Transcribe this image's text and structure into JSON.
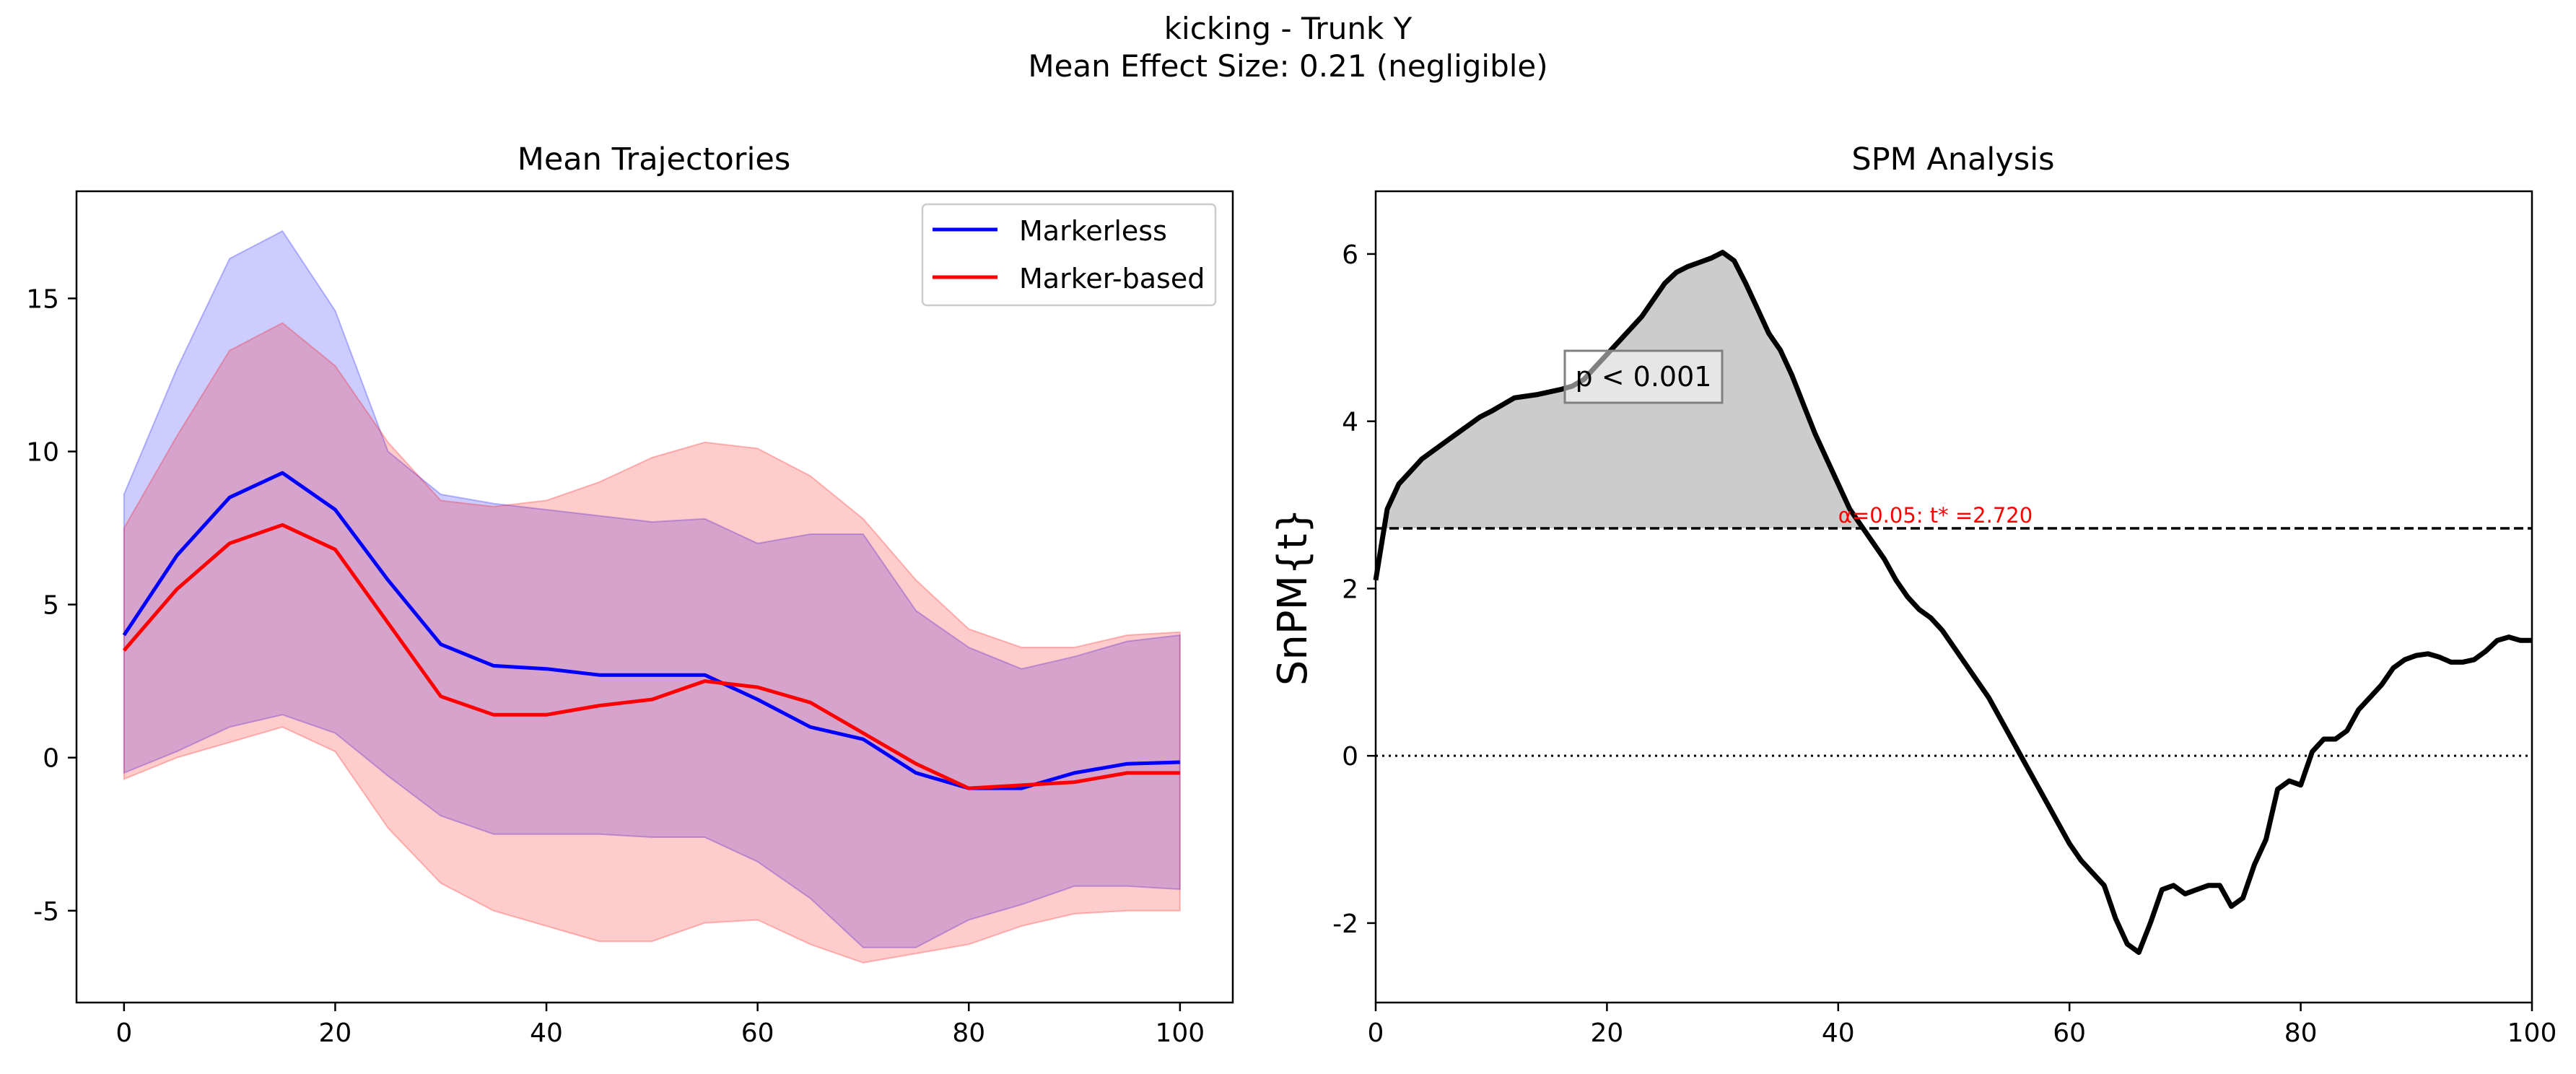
{
  "figure": {
    "title_line1": "kicking - Trunk Y",
    "title_line2": "Mean Effect Size: 0.21 (negligible)"
  },
  "chart_data": [
    {
      "type": "line",
      "title": "Mean Trajectories",
      "xlabel": "",
      "ylabel": "",
      "xlim": [
        -4.5,
        105
      ],
      "ylim": [
        -8,
        18.5
      ],
      "xticks": [
        0,
        20,
        40,
        60,
        80,
        100
      ],
      "yticks": [
        -5,
        0,
        5,
        10,
        15
      ],
      "grid": false,
      "legend_position": "top-right",
      "x": [
        0,
        5,
        10,
        15,
        20,
        25,
        30,
        35,
        40,
        45,
        50,
        55,
        60,
        65,
        70,
        75,
        80,
        85,
        90,
        95,
        100
      ],
      "series": [
        {
          "name": "Markerless",
          "color": "#0000ff",
          "band_color": "#0000ff",
          "band_opacity": 0.2,
          "values": [
            4.0,
            6.6,
            8.5,
            9.3,
            8.1,
            5.8,
            3.7,
            3.0,
            2.9,
            2.7,
            2.7,
            2.7,
            1.9,
            1.0,
            0.6,
            -0.5,
            -1.0,
            -1.0,
            -0.5,
            -0.2,
            -0.15
          ],
          "upper": [
            8.6,
            12.7,
            16.3,
            17.2,
            14.6,
            10.0,
            8.6,
            8.3,
            8.1,
            7.9,
            7.7,
            7.8,
            7.0,
            7.3,
            7.3,
            4.8,
            3.6,
            2.9,
            3.3,
            3.8,
            4.0
          ],
          "lower": [
            -0.5,
            0.2,
            1.0,
            1.4,
            0.8,
            -0.6,
            -1.9,
            -2.5,
            -2.5,
            -2.5,
            -2.6,
            -2.6,
            -3.4,
            -4.6,
            -6.2,
            -6.2,
            -5.3,
            -4.8,
            -4.2,
            -4.2,
            -4.3
          ]
        },
        {
          "name": "Marker-based",
          "color": "#ff0000",
          "band_color": "#ff0000",
          "band_opacity": 0.2,
          "values": [
            3.5,
            5.5,
            7.0,
            7.6,
            6.8,
            4.4,
            2.0,
            1.4,
            1.4,
            1.7,
            1.9,
            2.5,
            2.3,
            1.8,
            0.8,
            -0.2,
            -1.0,
            -0.9,
            -0.8,
            -0.5,
            -0.5
          ],
          "upper": [
            7.5,
            10.5,
            13.3,
            14.2,
            12.8,
            10.3,
            8.4,
            8.2,
            8.4,
            9.0,
            9.8,
            10.3,
            10.1,
            9.2,
            7.8,
            5.8,
            4.2,
            3.6,
            3.6,
            4.0,
            4.1
          ],
          "lower": [
            -0.7,
            0.0,
            0.5,
            1.0,
            0.2,
            -2.3,
            -4.1,
            -5.0,
            -5.5,
            -6.0,
            -6.0,
            -5.4,
            -5.3,
            -6.1,
            -6.7,
            -6.4,
            -6.1,
            -5.5,
            -5.1,
            -5.0,
            -5.0
          ]
        }
      ]
    },
    {
      "type": "line",
      "title": "SPM Analysis",
      "xlabel": "",
      "ylabel": "SnPM{t}",
      "xlim": [
        0,
        100
      ],
      "ylim": [
        -2.95,
        6.75
      ],
      "xticks": [
        0,
        20,
        40,
        60,
        80,
        100
      ],
      "yticks": [
        -2,
        0,
        2,
        4,
        6
      ],
      "grid": false,
      "threshold": 2.72,
      "threshold_color": "#ff0000",
      "threshold_label": "α=0.05:  t* =2.720",
      "cluster_label": "p < 0.001",
      "cluster_fill": "#cccccc",
      "x": [
        0,
        1,
        2,
        3,
        4,
        5,
        6,
        7,
        8,
        9,
        10,
        11,
        12,
        13,
        14,
        15,
        16,
        17,
        18,
        19,
        20,
        21,
        22,
        23,
        24,
        25,
        26,
        27,
        28,
        29,
        30,
        31,
        32,
        33,
        34,
        35,
        36,
        37,
        38,
        39,
        40,
        41,
        42,
        43,
        44,
        45,
        46,
        47,
        48,
        49,
        50,
        51,
        52,
        53,
        54,
        55,
        56,
        57,
        58,
        59,
        60,
        61,
        62,
        63,
        64,
        65,
        66,
        67,
        68,
        69,
        70,
        71,
        72,
        73,
        74,
        75,
        76,
        77,
        78,
        79,
        80,
        81,
        82,
        83,
        84,
        85,
        86,
        87,
        88,
        89,
        90,
        91,
        92,
        93,
        94,
        95,
        96,
        97,
        98,
        99,
        100
      ],
      "values": [
        2.1,
        2.95,
        3.25,
        3.4,
        3.55,
        3.65,
        3.75,
        3.85,
        3.95,
        4.05,
        4.12,
        4.2,
        4.28,
        4.3,
        4.32,
        4.35,
        4.38,
        4.42,
        4.5,
        4.65,
        4.8,
        4.95,
        5.1,
        5.25,
        5.45,
        5.65,
        5.78,
        5.85,
        5.9,
        5.95,
        6.02,
        5.92,
        5.65,
        5.35,
        5.05,
        4.85,
        4.55,
        4.2,
        3.85,
        3.55,
        3.25,
        2.95,
        2.75,
        2.55,
        2.35,
        2.1,
        1.9,
        1.75,
        1.65,
        1.5,
        1.3,
        1.1,
        0.9,
        0.7,
        0.45,
        0.2,
        -0.05,
        -0.3,
        -0.55,
        -0.8,
        -1.05,
        -1.25,
        -1.4,
        -1.55,
        -1.95,
        -2.25,
        -2.35,
        -2.0,
        -1.6,
        -1.55,
        -1.65,
        -1.6,
        -1.55,
        -1.55,
        -1.8,
        -1.7,
        -1.3,
        -1.0,
        -0.4,
        -0.3,
        -0.35,
        0.05,
        0.2,
        0.2,
        0.3,
        0.55,
        0.7,
        0.85,
        1.05,
        1.15,
        1.2,
        1.22,
        1.18,
        1.12,
        1.12,
        1.15,
        1.25,
        1.38,
        1.42,
        1.38,
        1.38
      ]
    }
  ]
}
